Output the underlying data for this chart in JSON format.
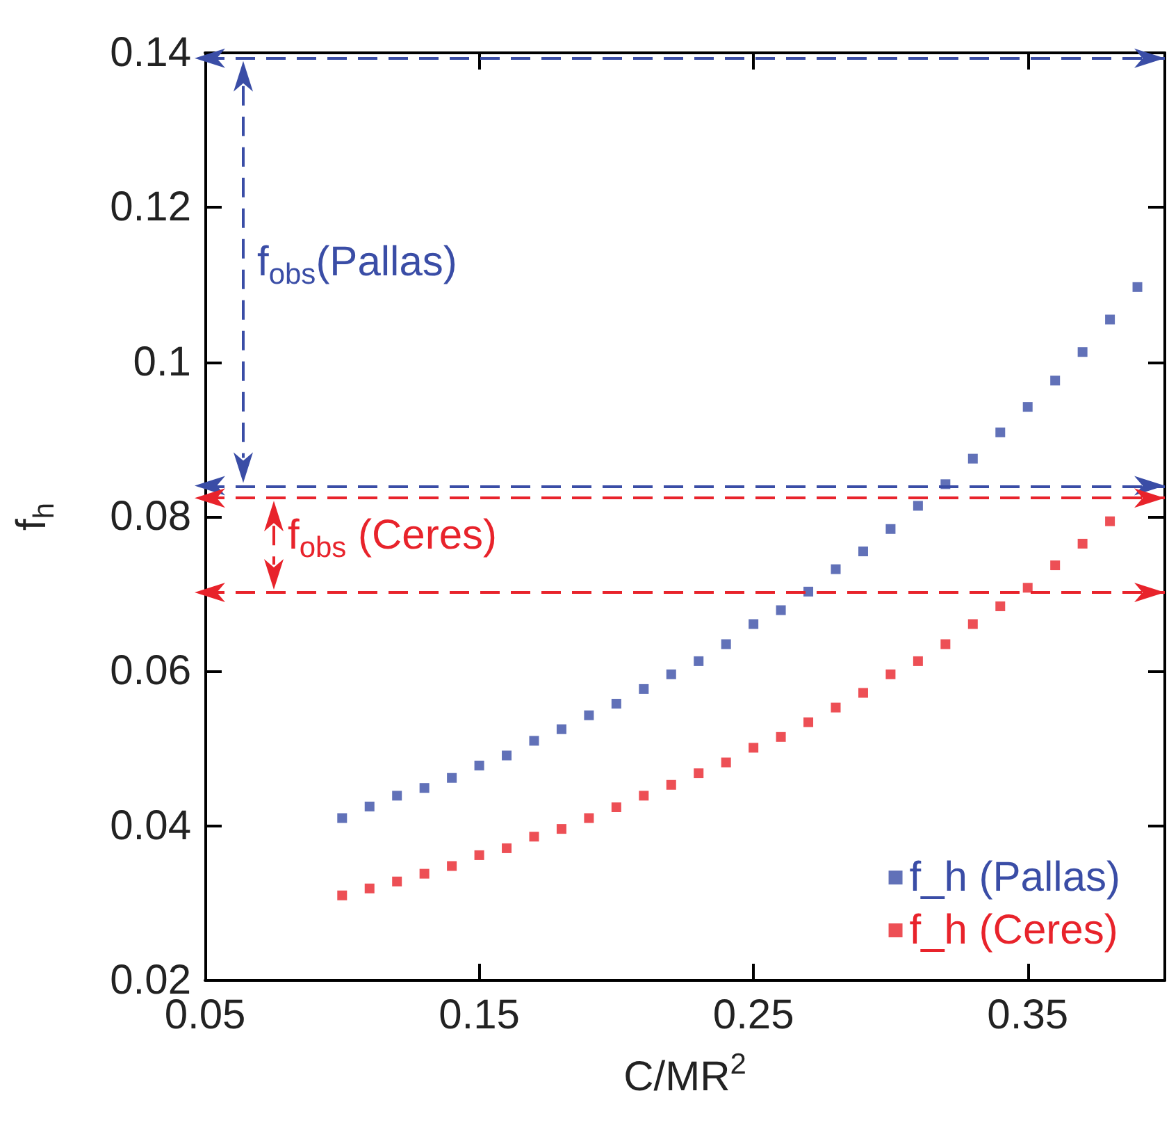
{
  "chart_data": {
    "type": "scatter",
    "xlabel": "C/MR$^{2}$",
    "ylabel": "f$_{h}$",
    "x": [
      0.1,
      0.11,
      0.12,
      0.13,
      0.14,
      0.15,
      0.16,
      0.17,
      0.18,
      0.19,
      0.2,
      0.21,
      0.22,
      0.23,
      0.24,
      0.25,
      0.26,
      0.27,
      0.28,
      0.29,
      0.3,
      0.31,
      0.32,
      0.33,
      0.34,
      0.35,
      0.36,
      0.37,
      0.38,
      0.39
    ],
    "series": [
      {
        "name": "f_h (Pallas)",
        "color": "#3a4da6",
        "values": [
          0.041,
          0.0425,
          0.0439,
          0.0449,
          0.0462,
          0.0478,
          0.0491,
          0.051,
          0.0525,
          0.0543,
          0.0558,
          0.0577,
          0.0596,
          0.0613,
          0.0635,
          0.0661,
          0.0679,
          0.0703,
          0.0732,
          0.0755,
          0.0784,
          0.0814,
          0.0842,
          0.0875,
          0.0909,
          0.0942,
          0.0976,
          0.1013,
          0.1055,
          0.1097
        ]
      },
      {
        "name": "f_h (Ceres)",
        "color": "#e8232b",
        "values": [
          0.031,
          0.0319,
          0.0328,
          0.0338,
          0.0348,
          0.0362,
          0.0371,
          0.0386,
          0.0396,
          0.041,
          0.0424,
          0.0439,
          0.0453,
          0.0468,
          0.0482,
          0.0501,
          0.0515,
          0.0534,
          0.0553,
          0.0572,
          0.0596,
          0.0613,
          0.0635,
          0.0661,
          0.0684,
          0.0708,
          0.0737,
          0.0765,
          0.0794,
          null
        ]
      }
    ],
    "marker": "square",
    "xlim": [
      0.05,
      0.4
    ],
    "xticks": [
      0.05,
      0.15,
      0.25,
      0.35
    ],
    "ylim": [
      0.02,
      0.14
    ],
    "yticks": [
      0.02,
      0.04,
      0.06,
      0.08,
      0.1,
      0.12,
      0.14
    ],
    "ref_lines": [
      {
        "axis": "y",
        "value": 0.1393,
        "color": "#3a4da6",
        "line_style": "dashed"
      },
      {
        "axis": "y",
        "value": 0.084,
        "color": "#3a4da6",
        "line_style": "dashed"
      },
      {
        "axis": "y",
        "value": 0.0824,
        "color": "#e8232b",
        "line_style": "dashed"
      },
      {
        "axis": "y",
        "value": 0.0702,
        "color": "#e8232b",
        "line_style": "dashed"
      }
    ],
    "annotations": [
      "f$_{obs}$(Pallas)",
      "f$_{obs}$ (Ceres)"
    ],
    "legend": "bottom right"
  }
}
